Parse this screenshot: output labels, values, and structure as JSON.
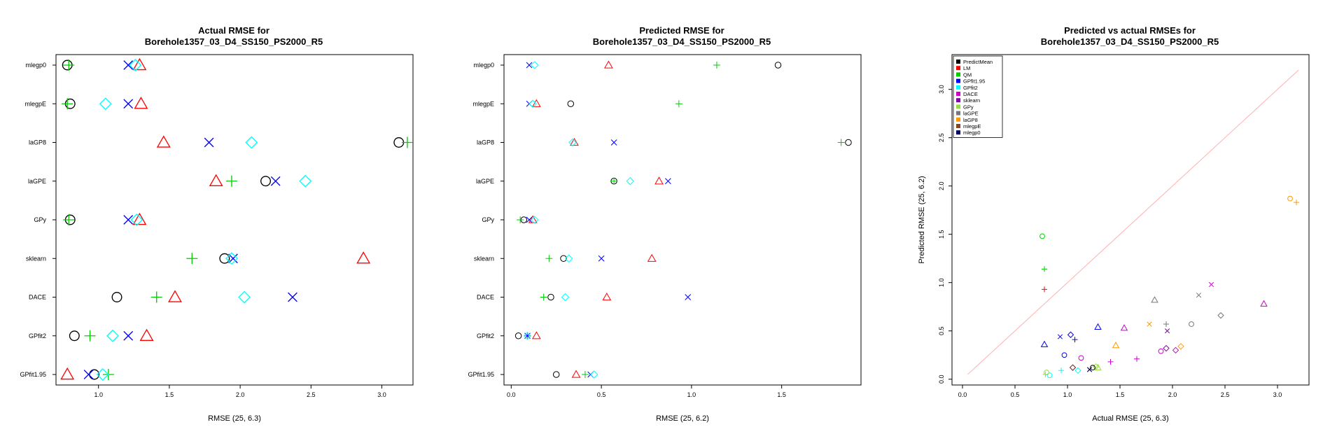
{
  "chart_data": [
    {
      "type": "scatter",
      "title_lines": [
        "Actual RMSE for",
        "Borehole1357_03_D4_SS150_PS2000_R5"
      ],
      "xlabel": "RMSE (25, 6.3)",
      "ylabel": "",
      "xlim": [
        0.7,
        3.22
      ],
      "xticks": [
        "1.0",
        "1.5",
        "2.0",
        "2.5",
        "3.0"
      ],
      "categories": [
        "GPfit1.95",
        "GPfit2",
        "DACE",
        "sklearn",
        "GPy",
        "laGPE",
        "laGP8",
        "mlegpE",
        "mlegp0"
      ],
      "marker_scale": 1.6,
      "series": [
        {
          "name": "PredictMean",
          "color": "#000000",
          "shape": "circle",
          "values": [
            0.97,
            0.83,
            1.13,
            1.89,
            0.8,
            2.18,
            3.12,
            0.8,
            0.78
          ]
        },
        {
          "name": "LM",
          "color": "#ff0000",
          "shape": "triangle",
          "values": [
            0.78,
            1.34,
            1.54,
            2.87,
            1.29,
            1.83,
            1.46,
            1.3,
            1.29
          ]
        },
        {
          "name": "QM",
          "color": "#00cc00",
          "shape": "plus",
          "values": [
            1.07,
            0.94,
            1.41,
            1.66,
            0.79,
            1.94,
            3.18,
            0.78,
            0.79
          ]
        },
        {
          "name": "GPfit1.95",
          "color": "#0000ff",
          "shape": "x",
          "values": [
            0.93,
            1.21,
            2.37,
            1.95,
            1.21,
            2.25,
            1.78,
            1.21,
            1.21
          ]
        },
        {
          "name": "GPfit2",
          "color": "#00ffff",
          "shape": "diamond",
          "values": [
            1.03,
            1.1,
            2.03,
            1.94,
            1.27,
            2.46,
            2.08,
            1.05,
            1.26
          ]
        }
      ]
    },
    {
      "type": "scatter",
      "title_lines": [
        "Predicted RMSE for",
        "Borehole1357_03_D4_SS150_PS2000_R5"
      ],
      "xlabel": "RMSE (25, 6.2)",
      "ylabel": "",
      "xlim": [
        -0.04,
        1.94
      ],
      "xticks": [
        "0.0",
        "0.5",
        "1.0",
        "1.5"
      ],
      "categories": [
        "GPfit1.95",
        "GPfit2",
        "DACE",
        "sklearn",
        "GPy",
        "laGPE",
        "laGP8",
        "mlegpE",
        "mlegp0"
      ],
      "marker_scale": 1.0,
      "series": [
        {
          "name": "PredictMean",
          "color": "#000000",
          "shape": "circle",
          "values": [
            0.25,
            0.04,
            0.22,
            0.29,
            0.07,
            0.57,
            1.87,
            0.33,
            1.48
          ]
        },
        {
          "name": "LM",
          "color": "#ff0000",
          "shape": "triangle",
          "values": [
            0.36,
            0.14,
            0.53,
            0.78,
            0.12,
            0.82,
            0.35,
            0.14,
            0.54
          ]
        },
        {
          "name": "QM",
          "color": "#00cc00",
          "shape": "plus",
          "values": [
            0.41,
            0.09,
            0.18,
            0.21,
            0.05,
            0.57,
            1.83,
            0.93,
            1.14
          ]
        },
        {
          "name": "GPfit1.95",
          "color": "#0000ff",
          "shape": "x",
          "values": [
            0.44,
            0.09,
            0.98,
            0.5,
            0.1,
            0.87,
            0.57,
            0.1,
            0.1
          ]
        },
        {
          "name": "GPfit2",
          "color": "#00ffff",
          "shape": "diamond",
          "values": [
            0.46,
            0.09,
            0.3,
            0.32,
            0.13,
            0.66,
            0.34,
            0.12,
            0.13
          ]
        }
      ]
    },
    {
      "type": "scatter",
      "title_lines": [
        "Predicted vs actual RMSEs for",
        "Borehole1357_03_D4_SS150_PS2000_R5"
      ],
      "xlabel": "Actual RMSE (25, 6.3)",
      "ylabel": "Predicted RMSE (25, 6.2)",
      "xlim": [
        -0.1,
        3.3
      ],
      "ylim": [
        -0.06,
        3.36
      ],
      "xticks": [
        0,
        0.5,
        1,
        1.5,
        2,
        2.5,
        3
      ],
      "yticks": [
        0,
        0.5,
        1,
        1.5,
        2,
        2.5,
        3
      ],
      "xtick_labels": [
        "0.0",
        "0.5",
        "1.0",
        "1.5",
        "2.0",
        "2.5",
        "3.0"
      ],
      "ytick_labels": [
        "0.0",
        "0.5",
        "1.0",
        "1.5",
        "2.0",
        "2.5",
        "3.0"
      ],
      "reference_line": {
        "from": [
          0.05,
          0.05
        ],
        "to": [
          3.2,
          3.2
        ],
        "color": "#ffb0b0"
      },
      "legend_position": "top-left",
      "legend": [
        {
          "name": "PredictMean",
          "color": "#000000"
        },
        {
          "name": "LM",
          "color": "#ff0000"
        },
        {
          "name": "QM",
          "color": "#00cc00"
        },
        {
          "name": "GPfit1.95",
          "color": "#0000ff"
        },
        {
          "name": "GPfit2",
          "color": "#00ffff"
        },
        {
          "name": "DACE",
          "color": "#cc00cc"
        },
        {
          "name": "sklearn",
          "color": "#8800aa"
        },
        {
          "name": "GPy",
          "color": "#99dd44"
        },
        {
          "name": "laGPE",
          "color": "#777777"
        },
        {
          "name": "laGP8",
          "color": "#ff9900"
        },
        {
          "name": "mlegpE",
          "color": "#884422"
        },
        {
          "name": "mlegp0",
          "color": "#000066"
        }
      ],
      "series": [
        {
          "name": "GPfit1.95",
          "color": "#0000ff",
          "points": [
            {
              "x": 1.21,
              "y": 0.1,
              "shape": "x"
            },
            {
              "x": 1.07,
              "y": 0.41,
              "shape": "plus"
            },
            {
              "x": 0.97,
              "y": 0.25,
              "shape": "circle"
            },
            {
              "x": 1.03,
              "y": 0.46,
              "shape": "diamond"
            },
            {
              "x": 0.93,
              "y": 0.44,
              "shape": "x"
            },
            {
              "x": 0.78,
              "y": 0.36,
              "shape": "triangle"
            },
            {
              "x": 1.29,
              "y": 0.54,
              "shape": "triangle"
            }
          ]
        },
        {
          "name": "GPfit2",
          "color": "#00ffff",
          "points": [
            {
              "x": 0.83,
              "y": 0.04,
              "shape": "circle"
            },
            {
              "x": 0.94,
              "y": 0.09,
              "shape": "plus"
            },
            {
              "x": 1.1,
              "y": 0.09,
              "shape": "diamond"
            }
          ]
        },
        {
          "name": "DACE",
          "color": "#cc00cc",
          "points": [
            {
              "x": 1.13,
              "y": 0.22,
              "shape": "circle"
            },
            {
              "x": 1.54,
              "y": 0.53,
              "shape": "triangle"
            },
            {
              "x": 1.41,
              "y": 0.18,
              "shape": "plus"
            },
            {
              "x": 2.37,
              "y": 0.98,
              "shape": "x"
            },
            {
              "x": 2.03,
              "y": 0.3,
              "shape": "diamond"
            },
            {
              "x": 1.89,
              "y": 0.29,
              "shape": "circle"
            },
            {
              "x": 2.87,
              "y": 0.78,
              "shape": "triangle"
            },
            {
              "x": 1.66,
              "y": 0.21,
              "shape": "plus"
            }
          ]
        },
        {
          "name": "sklearn",
          "color": "#8800aa",
          "points": [
            {
              "x": 1.95,
              "y": 0.5,
              "shape": "x"
            },
            {
              "x": 1.94,
              "y": 0.32,
              "shape": "diamond"
            },
            {
              "x": 1.05,
              "y": 0.12,
              "shape": "diamond"
            }
          ]
        },
        {
          "name": "GPy",
          "color": "#99dd44",
          "points": [
            {
              "x": 0.8,
              "y": 0.07,
              "shape": "circle"
            },
            {
              "x": 0.79,
              "y": 0.05,
              "shape": "plus"
            },
            {
              "x": 1.27,
              "y": 0.13,
              "shape": "diamond"
            },
            {
              "x": 1.29,
              "y": 0.12,
              "shape": "triangle"
            }
          ]
        },
        {
          "name": "laGPE",
          "color": "#777777",
          "points": [
            {
              "x": 2.18,
              "y": 0.57,
              "shape": "circle"
            },
            {
              "x": 1.83,
              "y": 0.82,
              "shape": "triangle"
            },
            {
              "x": 1.94,
              "y": 0.57,
              "shape": "plus"
            },
            {
              "x": 2.25,
              "y": 0.87,
              "shape": "x"
            },
            {
              "x": 2.46,
              "y": 0.66,
              "shape": "diamond"
            }
          ]
        },
        {
          "name": "laGP8",
          "color": "#ff9900",
          "points": [
            {
              "x": 3.12,
              "y": 1.87,
              "shape": "circle"
            },
            {
              "x": 3.18,
              "y": 1.83,
              "shape": "plus"
            },
            {
              "x": 1.78,
              "y": 0.57,
              "shape": "x"
            },
            {
              "x": 2.08,
              "y": 0.34,
              "shape": "diamond"
            },
            {
              "x": 1.46,
              "y": 0.35,
              "shape": "triangle"
            }
          ]
        },
        {
          "name": "mlegpE",
          "color": "#884422",
          "points": [
            {
              "x": 1.05,
              "y": 0.12,
              "shape": "diamond"
            }
          ]
        },
        {
          "name": "mlegp0",
          "color": "#000066",
          "points": [
            {
              "x": 1.21,
              "y": 0.1,
              "shape": "x"
            }
          ]
        },
        {
          "name": "PredictMean",
          "color": "#000000",
          "points": [
            {
              "x": 1.24,
              "y": 0.12,
              "shape": "circle"
            }
          ]
        },
        {
          "name": "LM",
          "color": "#ff0000",
          "points": [
            {
              "x": 0.78,
              "y": 0.93,
              "shape": "plus"
            }
          ]
        },
        {
          "name": "QM",
          "color": "#00cc00",
          "points": [
            {
              "x": 0.78,
              "y": 1.14,
              "shape": "plus"
            },
            {
              "x": 0.76,
              "y": 1.48,
              "shape": "circle"
            }
          ]
        }
      ]
    }
  ]
}
